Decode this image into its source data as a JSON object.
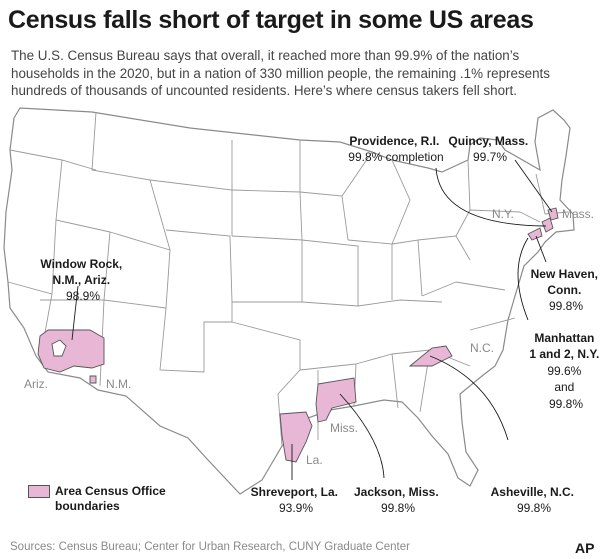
{
  "title": "Census falls short of target in some US areas",
  "subtitle": "The U.S. Census Bureau says that overall, it reached more than 99.9% of the nation’s households in the 2020, but in a nation of 330 million people, the remaining .1% represents hundreds of thousands of uncounted residents. Here’s where census takers fell short.",
  "state_labels": {
    "az": "Ariz.",
    "nm": "N.M.",
    "ny": "N.Y.",
    "ma": "Mass.",
    "nc": "N.C.",
    "ms": "Miss.",
    "la": "La."
  },
  "callouts": [
    {
      "id": "window-rock",
      "name_lines": [
        "Window Rock,",
        "N.M., Ariz."
      ],
      "value_lines": [
        "98.9%"
      ]
    },
    {
      "id": "providence",
      "name_lines": [
        "Providence, R.I."
      ],
      "value_lines": [
        "99.8% completion"
      ]
    },
    {
      "id": "quincy",
      "name_lines": [
        "Quincy, Mass."
      ],
      "value_lines": [
        "99.7%"
      ]
    },
    {
      "id": "new-haven",
      "name_lines": [
        "New Haven,",
        "Conn."
      ],
      "value_lines": [
        "99.8%"
      ]
    },
    {
      "id": "manhattan",
      "name_lines": [
        "Manhattan",
        "1 and 2, N.Y."
      ],
      "value_lines": [
        "99.6%",
        "and",
        "99.8%"
      ]
    },
    {
      "id": "shreveport",
      "name_lines": [
        "Shreveport, La."
      ],
      "value_lines": [
        "93.9%"
      ]
    },
    {
      "id": "jackson",
      "name_lines": [
        "Jackson, Miss."
      ],
      "value_lines": [
        "99.8%"
      ]
    },
    {
      "id": "asheville",
      "name_lines": [
        "Asheville, N.C."
      ],
      "value_lines": [
        "99.8%"
      ]
    }
  ],
  "legend": {
    "label": "Area Census Office boundaries",
    "swatch_color": "#e8b7d6"
  },
  "colors": {
    "highlight": "#e8b7d6",
    "border": "#555555",
    "state_line": "#9a9a9a",
    "land": "#ffffff"
  },
  "source": "Sources: Census Bureau; Center for Urban Research, CUNY Graduate Center",
  "credit": "AP"
}
